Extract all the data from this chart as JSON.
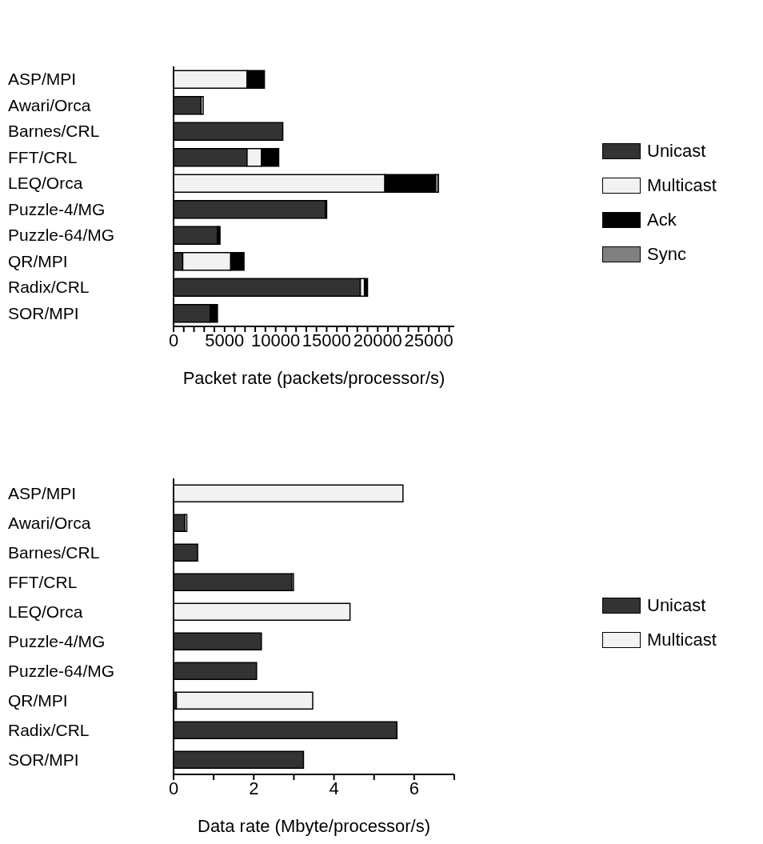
{
  "chart_data": [
    {
      "type": "bar",
      "orientation": "horizontal",
      "stacked": true,
      "xlabel": "Packet rate (packets/processor/s)",
      "categories": [
        "ASP/MPI",
        "Awari/Orca",
        "Barnes/CRL",
        "FFT/CRL",
        "LEQ/Orca",
        "Puzzle-4/MG",
        "Puzzle-64/MG",
        "QR/MPI",
        "Radix/CRL",
        "SOR/MPI"
      ],
      "series": [
        {
          "name": "Unicast",
          "color": "#333333",
          "values": [
            0,
            2700,
            10700,
            7200,
            0,
            14900,
            4300,
            900,
            18300,
            3600
          ]
        },
        {
          "name": "Multicast",
          "color": "#f2f2f2",
          "values": [
            7200,
            200,
            0,
            1400,
            20700,
            0,
            0,
            4700,
            400,
            0
          ]
        },
        {
          "name": "Ack",
          "color": "#000000",
          "values": [
            1700,
            0,
            0,
            1700,
            4950,
            100,
            250,
            1300,
            300,
            700
          ]
        },
        {
          "name": "Sync",
          "color": "#808080",
          "values": [
            0,
            0,
            0,
            0,
            300,
            0,
            0,
            0,
            0,
            0
          ]
        }
      ],
      "xlim": [
        0,
        27500
      ],
      "xticks": [
        0,
        {
          "value": 1000,
          "label": null
        },
        {
          "value": 2000,
          "label": null
        },
        {
          "value": 3000,
          "label": null
        },
        {
          "value": 4000,
          "label": null
        },
        5000,
        {
          "value": 6000,
          "label": null
        },
        {
          "value": 7000,
          "label": null
        },
        {
          "value": 8000,
          "label": null
        },
        {
          "value": 9000,
          "label": null
        },
        10000,
        {
          "value": 11000,
          "label": null
        },
        {
          "value": 12000,
          "label": null
        },
        {
          "value": 13000,
          "label": null
        },
        {
          "value": 14000,
          "label": null
        },
        15000,
        {
          "value": 16000,
          "label": null
        },
        {
          "value": 17000,
          "label": null
        },
        {
          "value": 18000,
          "label": null
        },
        {
          "value": 19000,
          "label": null
        },
        20000,
        {
          "value": 21000,
          "label": null
        },
        {
          "value": 22000,
          "label": null
        },
        {
          "value": 23000,
          "label": null
        },
        {
          "value": 24000,
          "label": null
        },
        25000,
        {
          "value": 26000,
          "label": null
        },
        {
          "value": 27000,
          "label": null
        }
      ],
      "legend": "right",
      "grid": false
    },
    {
      "type": "bar",
      "orientation": "horizontal",
      "stacked": true,
      "xlabel": "Data rate (Mbyte/processor/s)",
      "categories": [
        "ASP/MPI",
        "Awari/Orca",
        "Barnes/CRL",
        "FFT/CRL",
        "LEQ/Orca",
        "Puzzle-4/MG",
        "Puzzle-64/MG",
        "QR/MPI",
        "Radix/CRL",
        "SOR/MPI"
      ],
      "series": [
        {
          "name": "Unicast",
          "color": "#333333",
          "values": [
            0,
            0.28,
            0.6,
            2.95,
            0,
            2.19,
            2.07,
            0.07,
            5.57,
            3.24
          ]
        },
        {
          "name": "Multicast",
          "color": "#f2f2f2",
          "values": [
            5.72,
            0.05,
            0,
            0.04,
            4.4,
            0,
            0,
            3.4,
            0,
            0
          ]
        }
      ],
      "xlim": [
        0,
        7
      ],
      "xticks": [
        0,
        {
          "value": 1,
          "label": null
        },
        2,
        {
          "value": 3,
          "label": null
        },
        4,
        {
          "value": 5,
          "label": null
        },
        6,
        {
          "value": 7,
          "label": null
        }
      ],
      "legend": "right",
      "grid": false
    }
  ]
}
